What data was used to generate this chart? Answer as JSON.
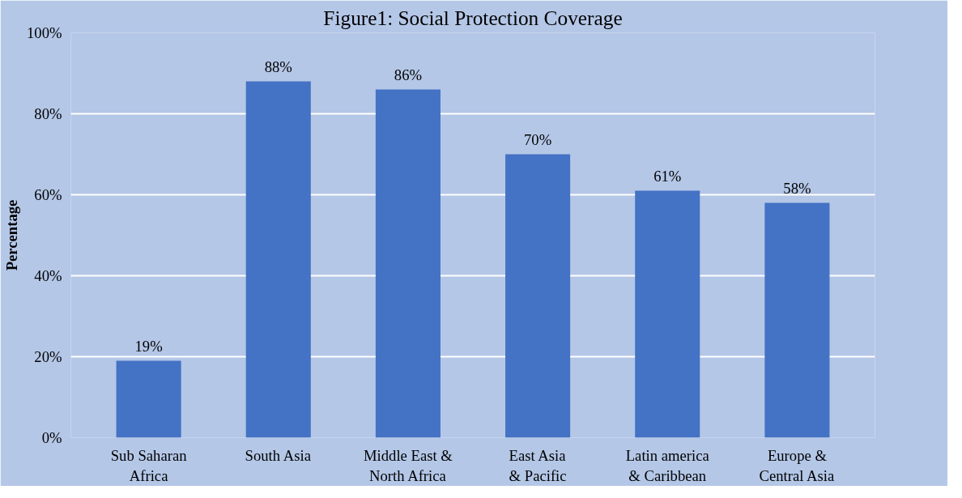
{
  "chart_data": {
    "type": "bar",
    "title": "Figure1: Social Protection Coverage",
    "ylabel": "Percentage",
    "categories": [
      "Sub Saharan Africa",
      "South Asia",
      "Middle East & North Africa",
      "East Asia & Pacific",
      "Latin america & Caribbean",
      "Europe & Central Asia"
    ],
    "values": [
      19,
      88,
      86,
      70,
      61,
      58
    ],
    "value_labels": [
      "19%",
      "88%",
      "86%",
      "70%",
      "61%",
      "58%"
    ],
    "color": "#4472c4",
    "ylim": [
      0,
      100
    ],
    "yticks": [
      {
        "value": 0,
        "label": "0%"
      },
      {
        "value": 20,
        "label": "20%"
      },
      {
        "value": 40,
        "label": "40%"
      },
      {
        "value": 60,
        "label": "60%"
      },
      {
        "value": 80,
        "label": "80%"
      },
      {
        "value": 100,
        "label": "100%"
      }
    ],
    "grid": "y"
  }
}
